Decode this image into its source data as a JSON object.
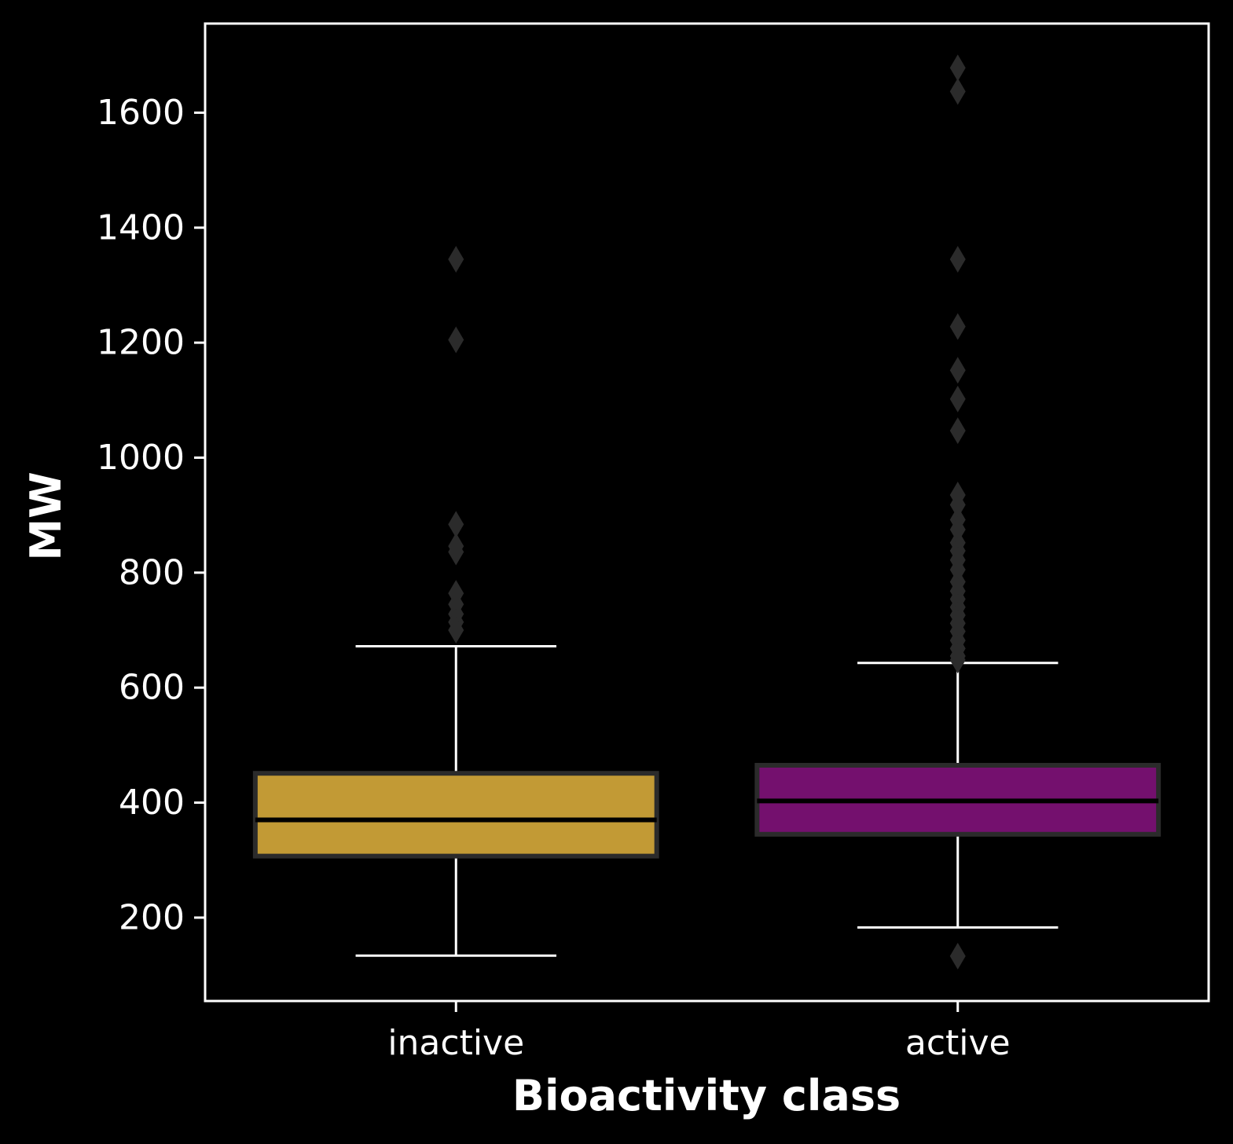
{
  "chart_data": {
    "type": "box",
    "title": "",
    "xlabel": "Bioactivity class",
    "ylabel": "MW",
    "ylim": [
      55,
      1755
    ],
    "yticks": [
      200,
      400,
      600,
      800,
      1000,
      1200,
      1400,
      1600
    ],
    "categories": [
      "inactive",
      "active"
    ],
    "grid": false,
    "colors": {
      "background": "#000000",
      "axes": "#ffffff",
      "box_edge": "#2b2b2b",
      "median": "#000000",
      "flier": "#2b2b2b"
    },
    "boxes": [
      {
        "category": "inactive",
        "color": "#c29a35",
        "whisker_low": 134,
        "q1": 307,
        "median": 370,
        "q3": 451,
        "whisker_high": 672,
        "outliers": [
          1345,
          1205,
          884,
          846,
          836,
          764,
          745,
          728,
          714,
          700
        ]
      },
      {
        "category": "active",
        "color": "#74106e",
        "whisker_low": 183,
        "q1": 345,
        "median": 403,
        "q3": 465,
        "whisker_high": 643,
        "outliers": [
          1678,
          1637,
          1345,
          1228,
          1152,
          1102,
          1047,
          935,
          918,
          892,
          875,
          852,
          838,
          822,
          805,
          784,
          768,
          754,
          740,
          726,
          712,
          698,
          682,
          668,
          655,
          648,
          133
        ]
      }
    ]
  }
}
